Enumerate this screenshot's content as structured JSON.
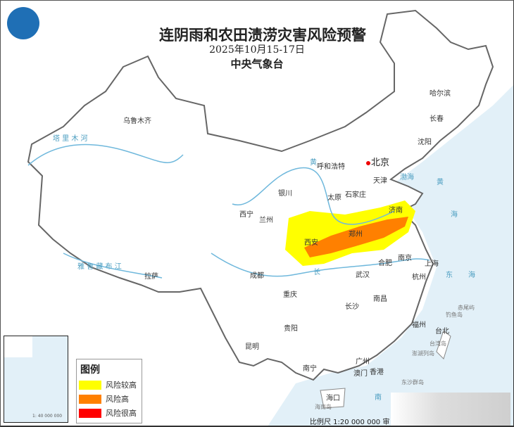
{
  "header": {
    "title": "连阴雨和农田渍涝灾害风险预警",
    "date": "2025年10月15-17日",
    "agency": "中央气象台"
  },
  "legend": {
    "title": "图例",
    "items": [
      {
        "label": "风险较高",
        "color": "#ffff00"
      },
      {
        "label": "风险高",
        "color": "#ff8000"
      },
      {
        "label": "风险很高",
        "color": "#ff0000"
      }
    ]
  },
  "cities": {
    "beijing": "北京",
    "urumqi": "乌鲁木齐",
    "hohhot": "呼和浩特",
    "tianjin": "天津",
    "harbin": "哈尔滨",
    "changchun": "长春",
    "shenyang": "沈阳",
    "yinchuan": "银川",
    "taiyuan": "太原",
    "shijiazhuang": "石家庄",
    "jinan": "济南",
    "xining": "西宁",
    "lanzhou": "兰州",
    "xian": "西安",
    "zhengzhou": "郑州",
    "lhasa": "拉萨",
    "chengdu": "成都",
    "chongqing": "重庆",
    "wuhan": "武汉",
    "hefei": "合肥",
    "nanjing": "南京",
    "shanghai": "上海",
    "hangzhou": "杭州",
    "changsha": "长沙",
    "nanchang": "南昌",
    "guiyang": "贵阳",
    "kunming": "昆明",
    "fuzhou": "福州",
    "taipei": "台北",
    "nanning": "南宁",
    "guangzhou": "广州",
    "macau": "澳门",
    "hongkong": "香港",
    "haikou": "海口"
  },
  "seas": {
    "bohai": "渤海",
    "huanghai": "黄",
    "huanghai2": "海",
    "donghai": "东",
    "donghai2": "海",
    "nanhai": "南"
  },
  "islands": {
    "chiwei": "赤尾屿",
    "diaoyu": "钓鱼岛",
    "taiwan": "台湾岛",
    "penghu": "澎湖列岛",
    "dongsha": "东沙群岛",
    "hainan": "海南岛"
  },
  "rivers": {
    "tarim": "塔 里 木 河",
    "yellow": "黄",
    "yangtze": "长",
    "yarlung": "雅 鲁 藏 布 江"
  },
  "scale": "比例尺 1:20 000 000  审",
  "inset_scale": "1: 40 000 000"
}
